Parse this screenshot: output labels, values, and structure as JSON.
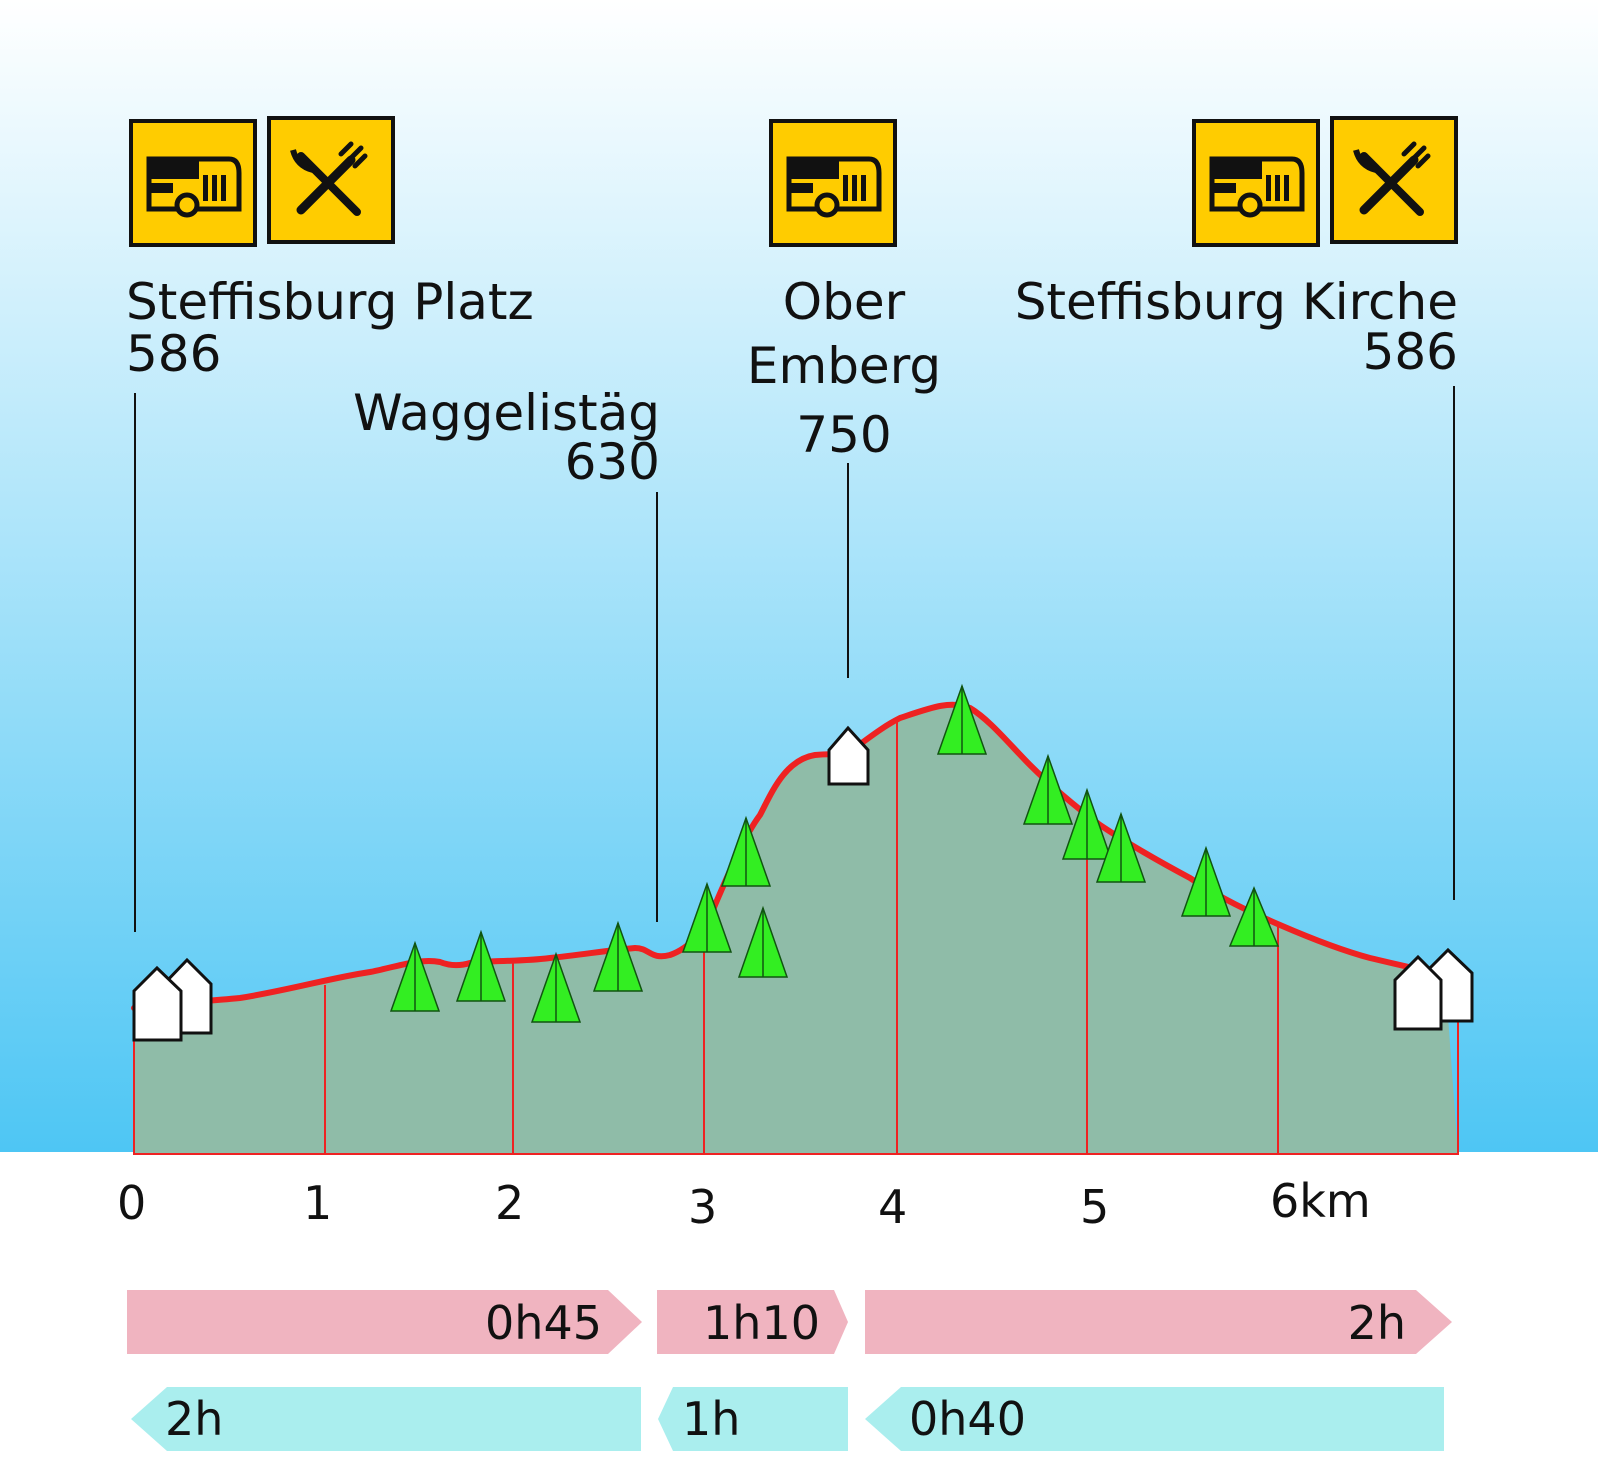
{
  "colors": {
    "sky_top": "#ffffff",
    "sky_bottom": "#4ec6f4",
    "terrain_fill": "#8fbca8",
    "profile_line": "#ee2222",
    "grid_line": "#ee2222",
    "tree": "#33ee22",
    "sign_bg": "#ffcc00",
    "forward_arrow": "#f0b4c0",
    "return_arrow": "#aaeeee"
  },
  "waypoints": [
    {
      "name": "Steffisburg Platz",
      "elevation": "586",
      "icons": [
        "bus-icon",
        "restaurant-icon"
      ]
    },
    {
      "name": "Waggelistäg",
      "elevation": "630",
      "icons": []
    },
    {
      "name_lines": [
        "Ober",
        "Emberg"
      ],
      "elevation": "750",
      "icons": [
        "bus-icon"
      ]
    },
    {
      "name": "Steffisburg Kirche",
      "elevation": "586",
      "icons": [
        "bus-icon",
        "restaurant-icon"
      ]
    }
  ],
  "axis": {
    "ticks": [
      "0",
      "1",
      "2",
      "3",
      "4",
      "5",
      "6km"
    ]
  },
  "durations": {
    "forward": [
      "0h45",
      "1h10",
      "2h"
    ],
    "return": [
      "2h",
      "1h",
      "0h40"
    ]
  },
  "icons": {
    "buildings": "house-icon",
    "trees": "tree-icon"
  }
}
